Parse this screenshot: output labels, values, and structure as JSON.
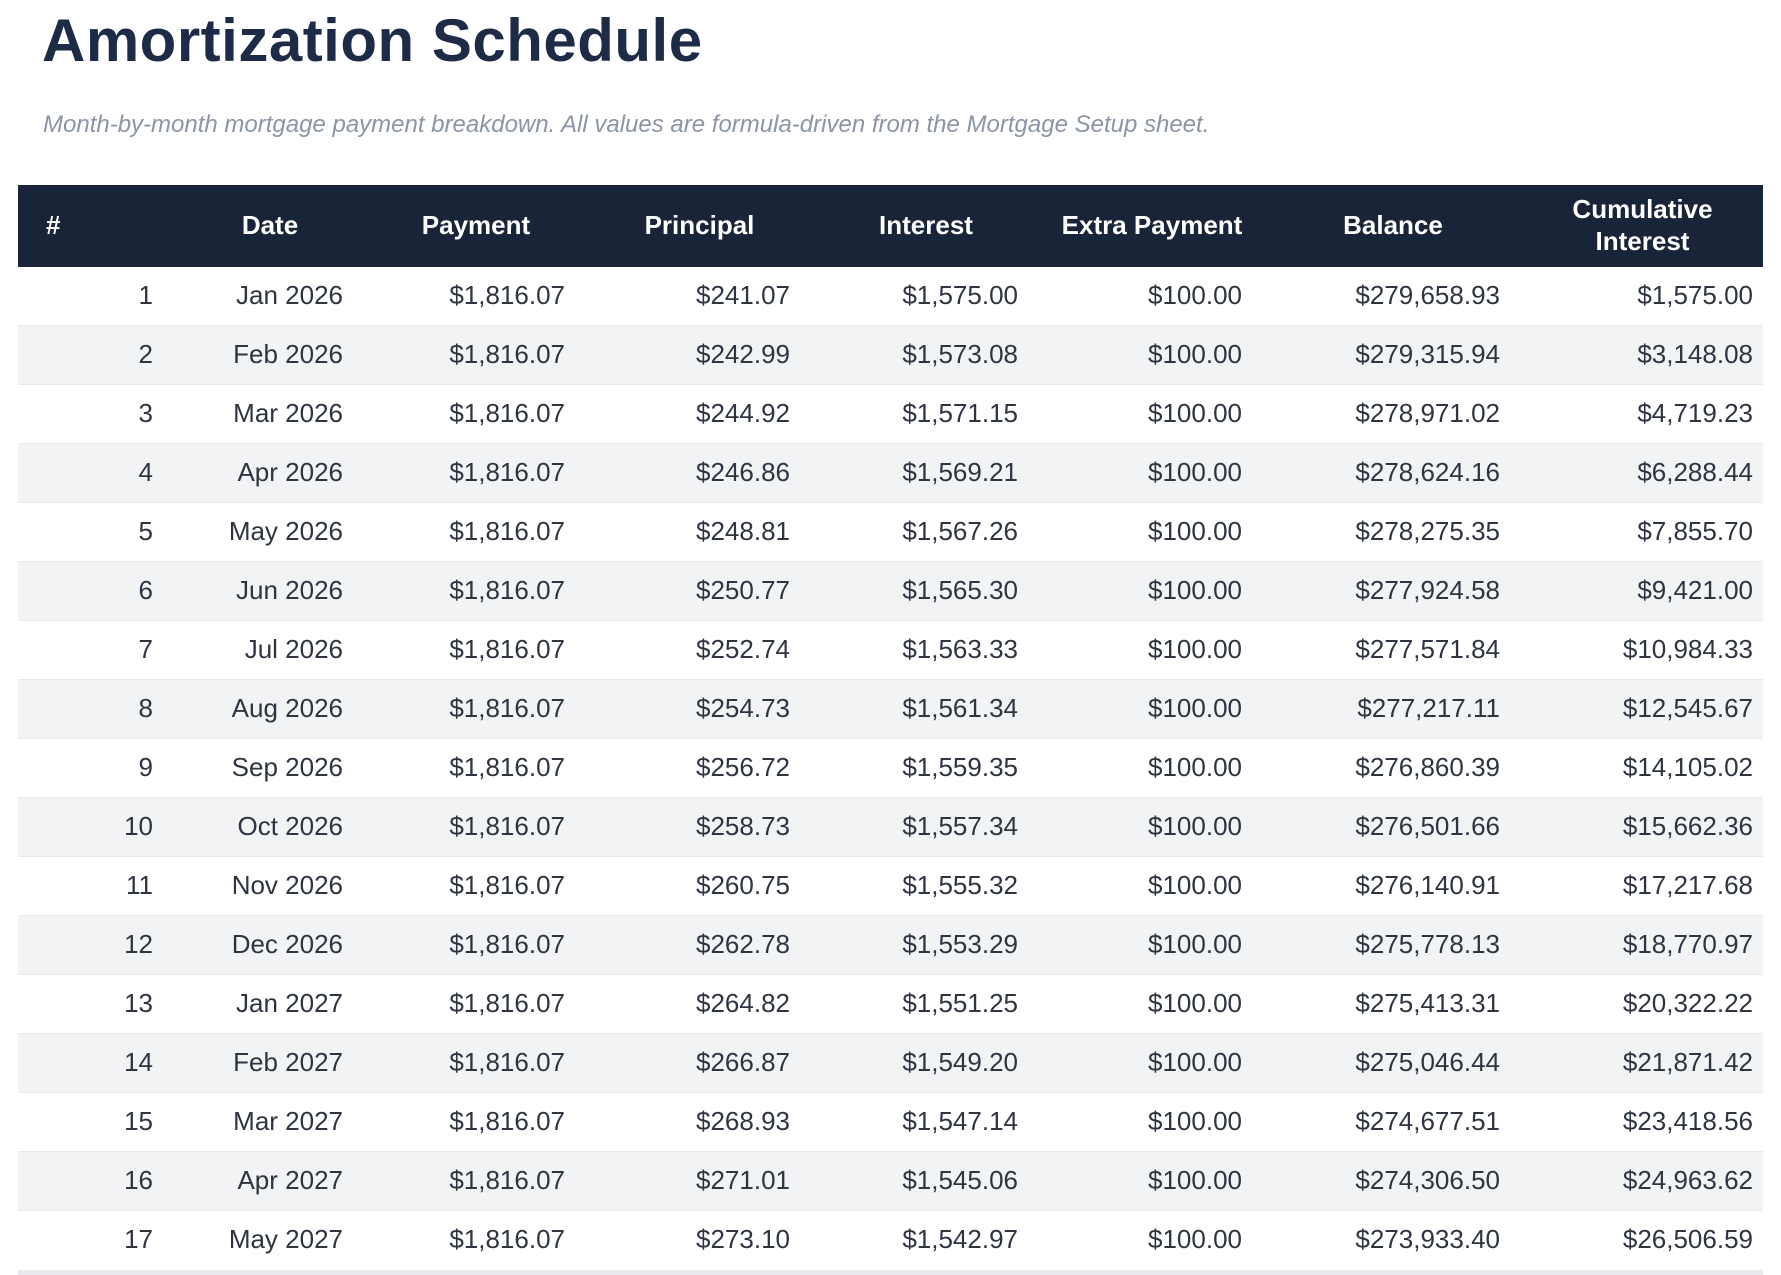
{
  "page": {
    "title": "Amortization Schedule",
    "subtitle": "Month-by-month mortgage payment breakdown. All values are formula-driven from the Mortgage Setup sheet."
  },
  "colors": {
    "header_bg": "#192438",
    "title_text": "#1d2b47",
    "subtitle_text": "#8b95a5",
    "alt_row_bg": "#f1f3f5",
    "row_border": "#e7e9ec",
    "cell_text": "#2e3440"
  },
  "table": {
    "columns": [
      {
        "key": "row-number",
        "label": "#"
      },
      {
        "key": "date",
        "label": "Date"
      },
      {
        "key": "payment",
        "label": "Payment"
      },
      {
        "key": "principal",
        "label": "Principal"
      },
      {
        "key": "interest",
        "label": "Interest"
      },
      {
        "key": "extra-payment",
        "label": "Extra Payment"
      },
      {
        "key": "balance",
        "label": "Balance"
      },
      {
        "key": "cumulative-interest",
        "label": "Cumulative Interest"
      }
    ],
    "rows": [
      [
        "1",
        "Jan 2026",
        "$1,816.07",
        "$241.07",
        "$1,575.00",
        "$100.00",
        "$279,658.93",
        "$1,575.00"
      ],
      [
        "2",
        "Feb 2026",
        "$1,816.07",
        "$242.99",
        "$1,573.08",
        "$100.00",
        "$279,315.94",
        "$3,148.08"
      ],
      [
        "3",
        "Mar 2026",
        "$1,816.07",
        "$244.92",
        "$1,571.15",
        "$100.00",
        "$278,971.02",
        "$4,719.23"
      ],
      [
        "4",
        "Apr 2026",
        "$1,816.07",
        "$246.86",
        "$1,569.21",
        "$100.00",
        "$278,624.16",
        "$6,288.44"
      ],
      [
        "5",
        "May 2026",
        "$1,816.07",
        "$248.81",
        "$1,567.26",
        "$100.00",
        "$278,275.35",
        "$7,855.70"
      ],
      [
        "6",
        "Jun 2026",
        "$1,816.07",
        "$250.77",
        "$1,565.30",
        "$100.00",
        "$277,924.58",
        "$9,421.00"
      ],
      [
        "7",
        "Jul 2026",
        "$1,816.07",
        "$252.74",
        "$1,563.33",
        "$100.00",
        "$277,571.84",
        "$10,984.33"
      ],
      [
        "8",
        "Aug 2026",
        "$1,816.07",
        "$254.73",
        "$1,561.34",
        "$100.00",
        "$277,217.11",
        "$12,545.67"
      ],
      [
        "9",
        "Sep 2026",
        "$1,816.07",
        "$256.72",
        "$1,559.35",
        "$100.00",
        "$276,860.39",
        "$14,105.02"
      ],
      [
        "10",
        "Oct 2026",
        "$1,816.07",
        "$258.73",
        "$1,557.34",
        "$100.00",
        "$276,501.66",
        "$15,662.36"
      ],
      [
        "11",
        "Nov 2026",
        "$1,816.07",
        "$260.75",
        "$1,555.32",
        "$100.00",
        "$276,140.91",
        "$17,217.68"
      ],
      [
        "12",
        "Dec 2026",
        "$1,816.07",
        "$262.78",
        "$1,553.29",
        "$100.00",
        "$275,778.13",
        "$18,770.97"
      ],
      [
        "13",
        "Jan 2027",
        "$1,816.07",
        "$264.82",
        "$1,551.25",
        "$100.00",
        "$275,413.31",
        "$20,322.22"
      ],
      [
        "14",
        "Feb 2027",
        "$1,816.07",
        "$266.87",
        "$1,549.20",
        "$100.00",
        "$275,046.44",
        "$21,871.42"
      ],
      [
        "15",
        "Mar 2027",
        "$1,816.07",
        "$268.93",
        "$1,547.14",
        "$100.00",
        "$274,677.51",
        "$23,418.56"
      ],
      [
        "16",
        "Apr 2027",
        "$1,816.07",
        "$271.01",
        "$1,545.06",
        "$100.00",
        "$274,306.50",
        "$24,963.62"
      ],
      [
        "17",
        "May 2027",
        "$1,816.07",
        "$273.10",
        "$1,542.97",
        "$100.00",
        "$273,933.40",
        "$26,506.59"
      ]
    ]
  }
}
